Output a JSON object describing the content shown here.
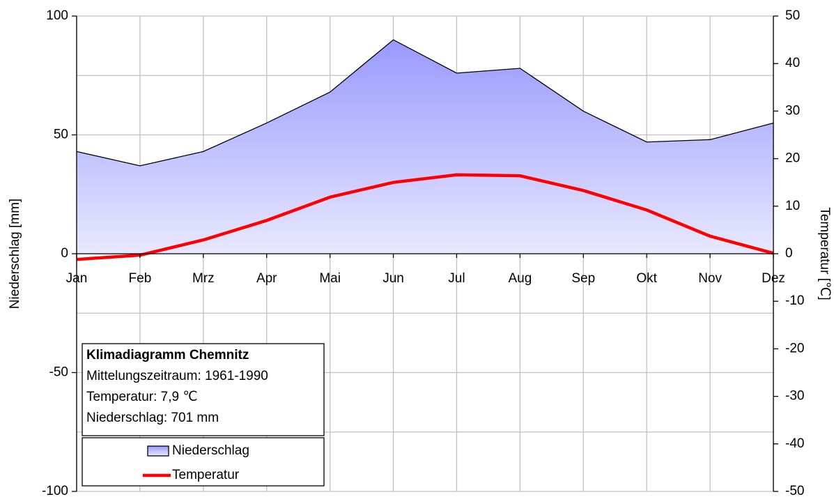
{
  "chart_data": {
    "type": "climate",
    "categories": [
      "Jan",
      "Feb",
      "Mrz",
      "Apr",
      "Mai",
      "Jun",
      "Jul",
      "Aug",
      "Sep",
      "Okt",
      "Nov",
      "Dez"
    ],
    "series": [
      {
        "name": "Niederschlag",
        "kind": "area",
        "color": "#9999ff",
        "axis": "y",
        "values": [
          43,
          37,
          43,
          55,
          68,
          90,
          76,
          78,
          60,
          47,
          48,
          55
        ]
      },
      {
        "name": "Temperatur",
        "kind": "line",
        "color": "#ff0000",
        "axis": "y2",
        "values": [
          -1.2,
          -0.3,
          2.9,
          7.0,
          11.9,
          15.0,
          16.6,
          16.4,
          13.3,
          9.2,
          3.7,
          0.1
        ]
      }
    ],
    "ylabel": "Niederschlag [mm]",
    "y2label": "Temperatur [℃]",
    "ylim": [
      -100,
      100
    ],
    "yticks": [
      -100,
      -50,
      0,
      50,
      100
    ],
    "minor_yticks": [
      -75,
      -25,
      25,
      75
    ],
    "y2lim": [
      -50,
      50
    ],
    "y2ticks": [
      -50,
      -40,
      -30,
      -20,
      -10,
      0,
      10,
      20,
      30,
      40,
      50
    ],
    "grid": true,
    "annotation": {
      "title": "Klimadiagramm Chemnitz",
      "lines": [
        "Mittelungszeitraum: 1961-1990",
        "Temperatur: 7,9 ℃",
        "Niederschlag: 701 mm"
      ]
    }
  }
}
